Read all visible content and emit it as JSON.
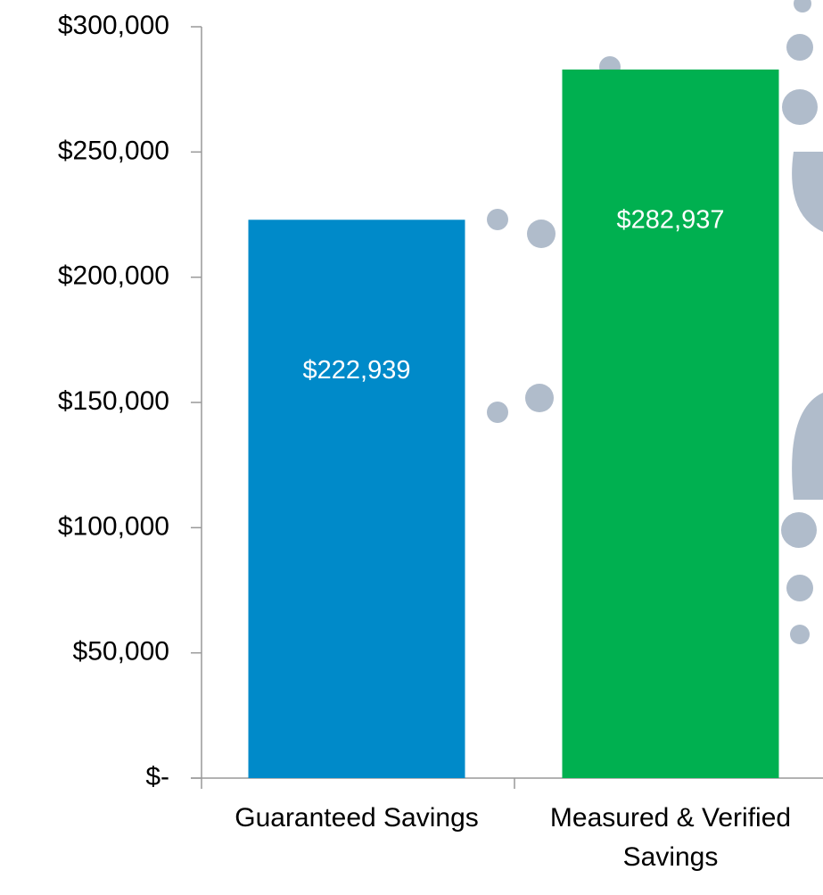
{
  "chart_data": {
    "type": "bar",
    "categories": [
      "Guaranteed Savings",
      "Measured & Verified Savings"
    ],
    "values": [
      222939,
      282937
    ],
    "value_labels": [
      "$222,939",
      "$282,937"
    ],
    "colors": [
      "#008ac9",
      "#00b050"
    ],
    "ylim": [
      0,
      300000
    ],
    "yticks": [
      {
        "value": 0,
        "label": "$-"
      },
      {
        "value": 50000,
        "label": "$50,000"
      },
      {
        "value": 100000,
        "label": "$100,000"
      },
      {
        "value": 150000,
        "label": "$150,000"
      },
      {
        "value": 200000,
        "label": "$200,000"
      },
      {
        "value": 250000,
        "label": "$250,000"
      },
      {
        "value": 300000,
        "label": "$300,000"
      }
    ]
  }
}
